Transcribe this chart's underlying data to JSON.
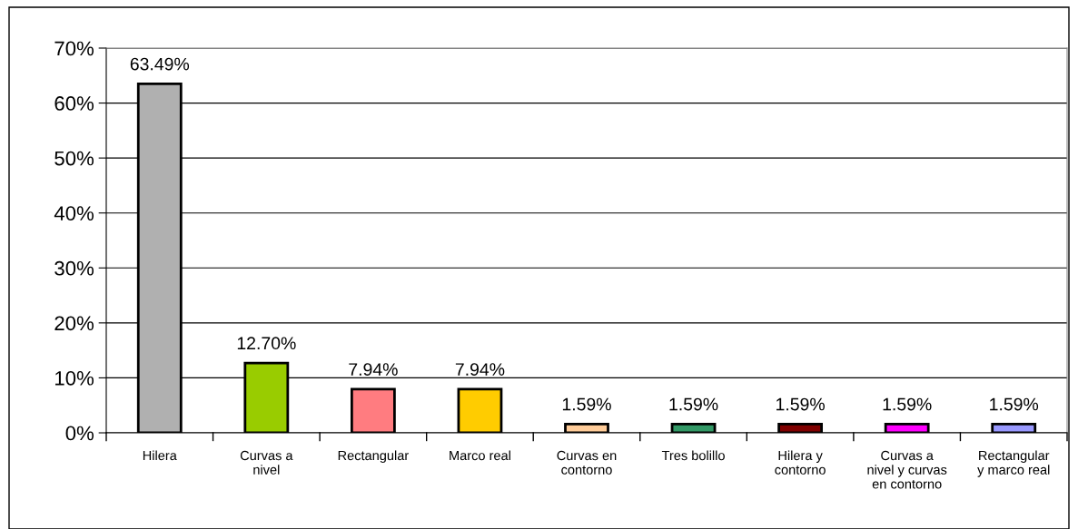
{
  "chart_data": {
    "type": "bar",
    "categories": [
      "Hilera",
      "Curvas a\nnivel",
      "Rectangular",
      "Marco real",
      "Curvas en\ncontorno",
      "Tres bolillo",
      "Hilera y\ncontorno",
      "Curvas a\nnivel y curvas\nen contorno",
      "Rectangular\ny marco real"
    ],
    "values": [
      63.49,
      12.7,
      7.94,
      7.94,
      1.59,
      1.59,
      1.59,
      1.59,
      1.59
    ],
    "value_labels": [
      "63.49%",
      "12.70%",
      "7.94%",
      "7.94%",
      "1.59%",
      "1.59%",
      "1.59%",
      "1.59%",
      "1.59%"
    ],
    "colors": [
      "#b0b0b0",
      "#99cc00",
      "#ff7c80",
      "#ffcc00",
      "#ffcc99",
      "#339966",
      "#800000",
      "#ff00ff",
      "#9999ff"
    ],
    "ylim": [
      0,
      70
    ],
    "yticks": [
      {
        "value": 0,
        "label": "0%"
      },
      {
        "value": 10,
        "label": "10%"
      },
      {
        "value": 20,
        "label": "20%"
      },
      {
        "value": 30,
        "label": "30%"
      },
      {
        "value": 40,
        "label": "40%"
      },
      {
        "value": 50,
        "label": "50%"
      },
      {
        "value": 60,
        "label": "60%"
      },
      {
        "value": 70,
        "label": "70%"
      }
    ],
    "grid": "y",
    "legend": false
  }
}
